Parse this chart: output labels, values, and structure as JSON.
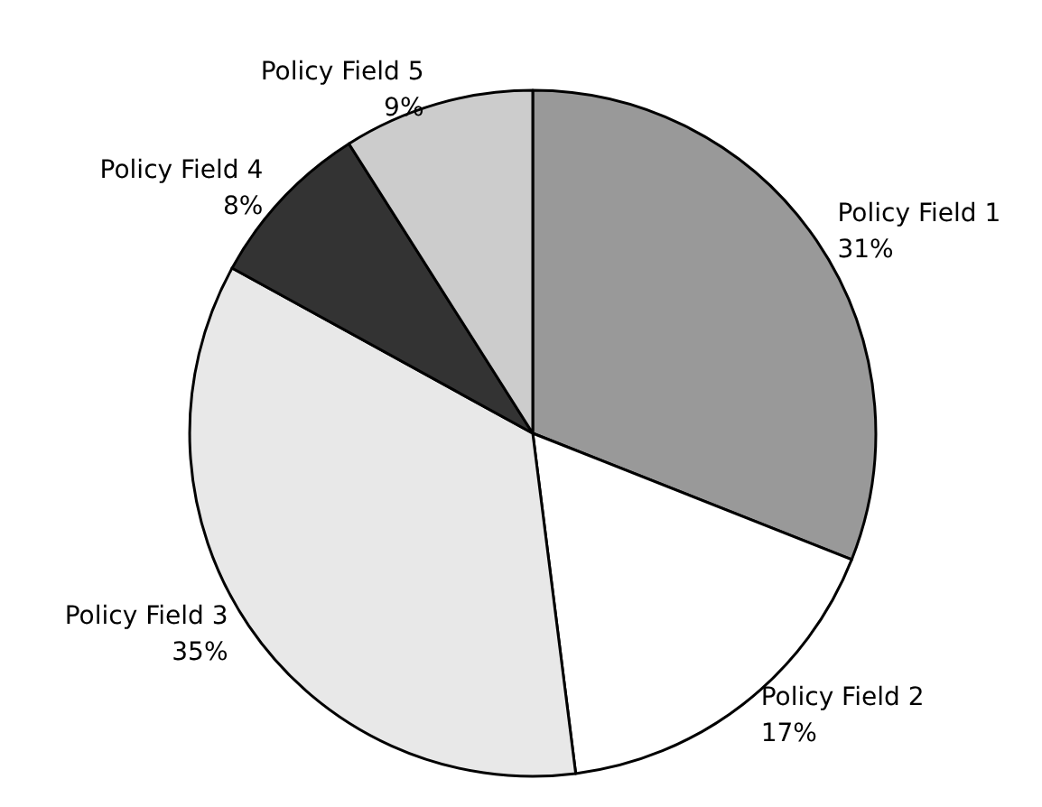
{
  "chart_data": {
    "type": "pie",
    "categories": [
      "Policy Field 1",
      "Policy Field 2",
      "Policy Field 3",
      "Policy Field 4",
      "Policy Field 5"
    ],
    "values": [
      31,
      17,
      35,
      8,
      9
    ],
    "value_labels": [
      "31%",
      "17%",
      "35%",
      "8%",
      "9%"
    ],
    "colors": [
      "#999999",
      "#ffffff",
      "#e8e8e8",
      "#333333",
      "#cccccc"
    ],
    "legend": false
  }
}
